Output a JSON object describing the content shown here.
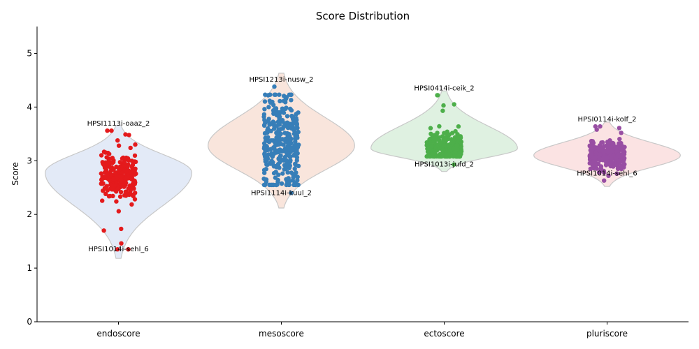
{
  "chart_data": {
    "type": "violin",
    "title": "Score Distribution",
    "xlabel": "",
    "ylabel": "Score",
    "ylim": [
      0,
      5.5
    ],
    "yticks": [
      0,
      1,
      2,
      3,
      4,
      5
    ],
    "grid": false,
    "categories": [
      "endoscore",
      "mesoscore",
      "ectoscore",
      "pluriscore"
    ],
    "series": [
      {
        "name": "endoscore",
        "point_color": "#e41a1c",
        "violin_color": "#e3eaf7",
        "n_points": 260,
        "center": 2.72,
        "spread": 0.22,
        "min": 1.35,
        "max": 3.56,
        "violin_min": 1.18,
        "violin_max": 3.66,
        "violin_peak": 2.78,
        "outliers": [
          1.35,
          1.46,
          1.7,
          1.73,
          2.06,
          3.48,
          3.49,
          3.56
        ],
        "annotations": [
          {
            "label": "HPSI1113i-oaaz_2",
            "y": 3.56
          },
          {
            "label": "HPSI1014i-sehl_6",
            "y": 1.35
          }
        ]
      },
      {
        "name": "mesoscore",
        "point_color": "#377eb8",
        "violin_color": "#f9e5dc",
        "n_points": 330,
        "center": 3.3,
        "spread": 0.45,
        "min": 2.4,
        "max": 4.38,
        "violin_min": 2.12,
        "violin_max": 4.63,
        "violin_peak": 3.28,
        "outliers": [],
        "annotations": [
          {
            "label": "HPSI1213i-nusw_2",
            "y": 4.38
          },
          {
            "label": "HPSI1114i-kuul_2",
            "y": 2.4
          }
        ]
      },
      {
        "name": "ectoscore",
        "point_color": "#4daf4a",
        "violin_color": "#dff1e1",
        "n_points": 300,
        "center": 3.25,
        "spread": 0.14,
        "min": 2.93,
        "max": 4.22,
        "violin_min": 2.8,
        "violin_max": 4.3,
        "violin_peak": 3.23,
        "outliers": [
          3.93,
          4.03,
          4.05,
          4.22
        ],
        "annotations": [
          {
            "label": "HPSI0414i-ceik_2",
            "y": 4.22
          },
          {
            "label": "HPSI1013i-jufd_2",
            "y": 2.93
          }
        ]
      },
      {
        "name": "pluriscore",
        "point_color": "#984ea3",
        "violin_color": "#fbe3e3",
        "n_points": 300,
        "center": 3.1,
        "spread": 0.13,
        "min": 2.63,
        "max": 3.64,
        "violin_min": 2.52,
        "violin_max": 3.72,
        "violin_peak": 3.1,
        "outliers": [
          2.63,
          2.72,
          3.52,
          3.58,
          3.61,
          3.64
        ],
        "annotations": [
          {
            "label": "HPSI0114i-kolf_2",
            "y": 3.64
          },
          {
            "label": "HPSI1014i-sehl_6",
            "y": 2.76
          }
        ]
      }
    ]
  }
}
